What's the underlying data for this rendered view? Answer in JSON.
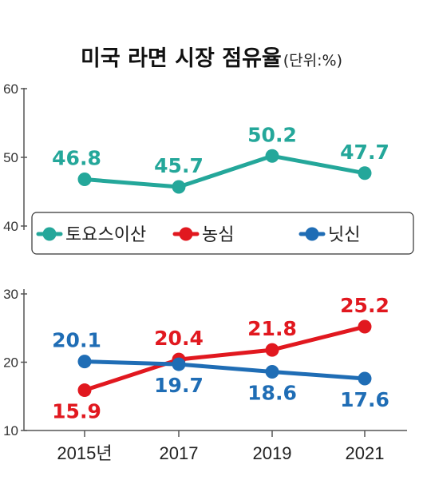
{
  "title": "미국 라면 시장 점유율",
  "unit": "(단위:%)",
  "chart_data": {
    "type": "line",
    "categories": [
      "2015년",
      "2017",
      "2019",
      "2021"
    ],
    "yticks": [
      "60",
      "50",
      "40",
      "30",
      "20",
      "10"
    ],
    "series": [
      {
        "name": "토요스이산",
        "color": "#24a79a",
        "values": [
          46.8,
          45.7,
          50.2,
          47.7
        ],
        "labels": [
          "46.8",
          "45.7",
          "50.2",
          "47.7"
        ]
      },
      {
        "name": "농심",
        "color": "#e1181f",
        "values": [
          15.9,
          20.4,
          21.8,
          25.2
        ],
        "labels": [
          "15.9",
          "20.4",
          "21.8",
          "25.2"
        ]
      },
      {
        "name": "닛신",
        "color": "#1f6db5",
        "values": [
          20.1,
          19.7,
          18.6,
          17.6
        ],
        "labels": [
          "20.1",
          "19.7",
          "18.6",
          "17.6"
        ]
      }
    ],
    "ylim": [
      10,
      60
    ],
    "grid": false,
    "legend": "middle"
  }
}
